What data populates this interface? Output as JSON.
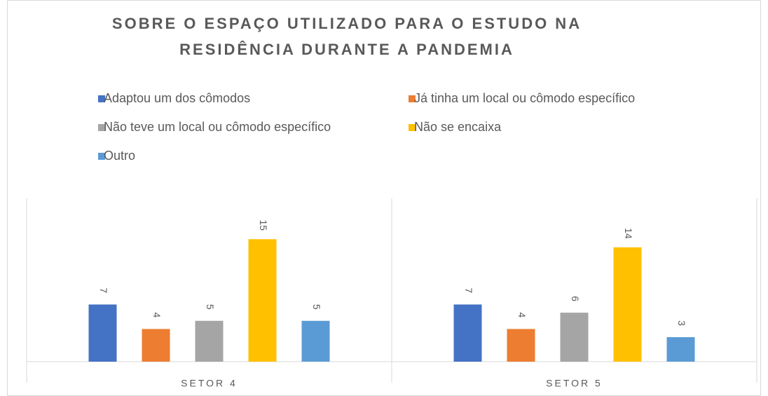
{
  "chart_data": {
    "type": "bar",
    "title": [
      "SOBRE O ESPAÇO UTILIZADO PARA O ESTUDO NA",
      "RESIDÊNCIA DURANTE A PANDEMIA"
    ],
    "categories": [
      "SETOR 4",
      "SETOR 5"
    ],
    "series": [
      {
        "name": "Adaptou um dos cômodos",
        "color": "#4472c4",
        "values": [
          7,
          7
        ]
      },
      {
        "name": "Já tinha um local ou cômodo específico",
        "color": "#ed7d31",
        "values": [
          4,
          4
        ]
      },
      {
        "name": "Não teve um local ou cômodo específico",
        "color": "#a5a5a5",
        "values": [
          5,
          6
        ]
      },
      {
        "name": "Não se encaixa",
        "color": "#ffc000",
        "values": [
          15,
          14
        ]
      },
      {
        "name": "Outro",
        "color": "#5b9bd5",
        "values": [
          5,
          3
        ]
      }
    ],
    "ylim": [
      0,
      20
    ],
    "legend": "top"
  }
}
